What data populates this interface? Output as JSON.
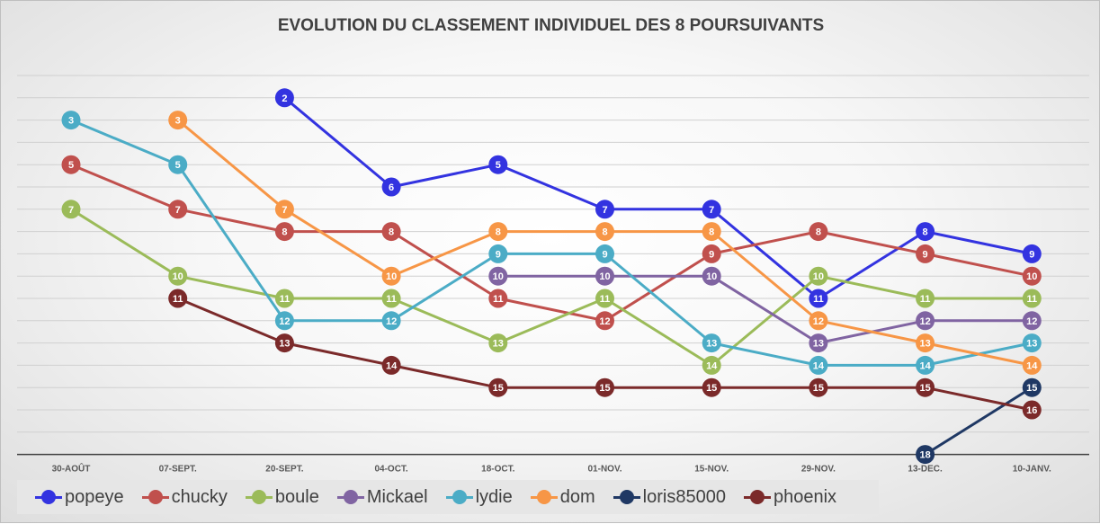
{
  "chart_data": {
    "type": "line",
    "title": "EVOLUTION DU CLASSEMENT INDIVIDUEL DES 8 POURSUIVANTS",
    "categories": [
      "30-AOÛT",
      "07-SEPT.",
      "20-SEPT.",
      "04-OCT.",
      "18-OCT.",
      "01-NOV.",
      "15-NOV.",
      "29-NOV.",
      "13-DEC.",
      "10-JANV."
    ],
    "y_reversed": true,
    "ylim": [
      1,
      18
    ],
    "grid": true,
    "legend_position": "bottom-left",
    "series": [
      {
        "name": "popeye",
        "color": "#3333e0",
        "values": [
          null,
          null,
          2,
          6,
          5,
          7,
          7,
          11,
          8,
          9
        ]
      },
      {
        "name": "chucky",
        "color": "#c0504d",
        "values": [
          5,
          7,
          8,
          8,
          11,
          12,
          9,
          8,
          9,
          10
        ]
      },
      {
        "name": "boule",
        "color": "#9bbb59",
        "values": [
          7,
          10,
          11,
          11,
          13,
          11,
          14,
          10,
          11,
          11
        ]
      },
      {
        "name": "Mickael",
        "color": "#8064a2",
        "values": [
          null,
          null,
          null,
          null,
          10,
          10,
          10,
          13,
          12,
          12
        ]
      },
      {
        "name": "lydie",
        "color": "#4bacc6",
        "values": [
          3,
          5,
          12,
          12,
          9,
          9,
          13,
          14,
          14,
          13
        ]
      },
      {
        "name": "dom",
        "color": "#f79646",
        "values": [
          null,
          3,
          7,
          10,
          8,
          8,
          8,
          12,
          13,
          14
        ]
      },
      {
        "name": "loris85000",
        "color": "#1f3864",
        "values": [
          null,
          null,
          null,
          null,
          null,
          null,
          null,
          null,
          18,
          15
        ]
      },
      {
        "name": "phoenix",
        "color": "#7b2a2a",
        "values": [
          null,
          11,
          13,
          14,
          15,
          15,
          15,
          15,
          15,
          16
        ]
      }
    ]
  }
}
